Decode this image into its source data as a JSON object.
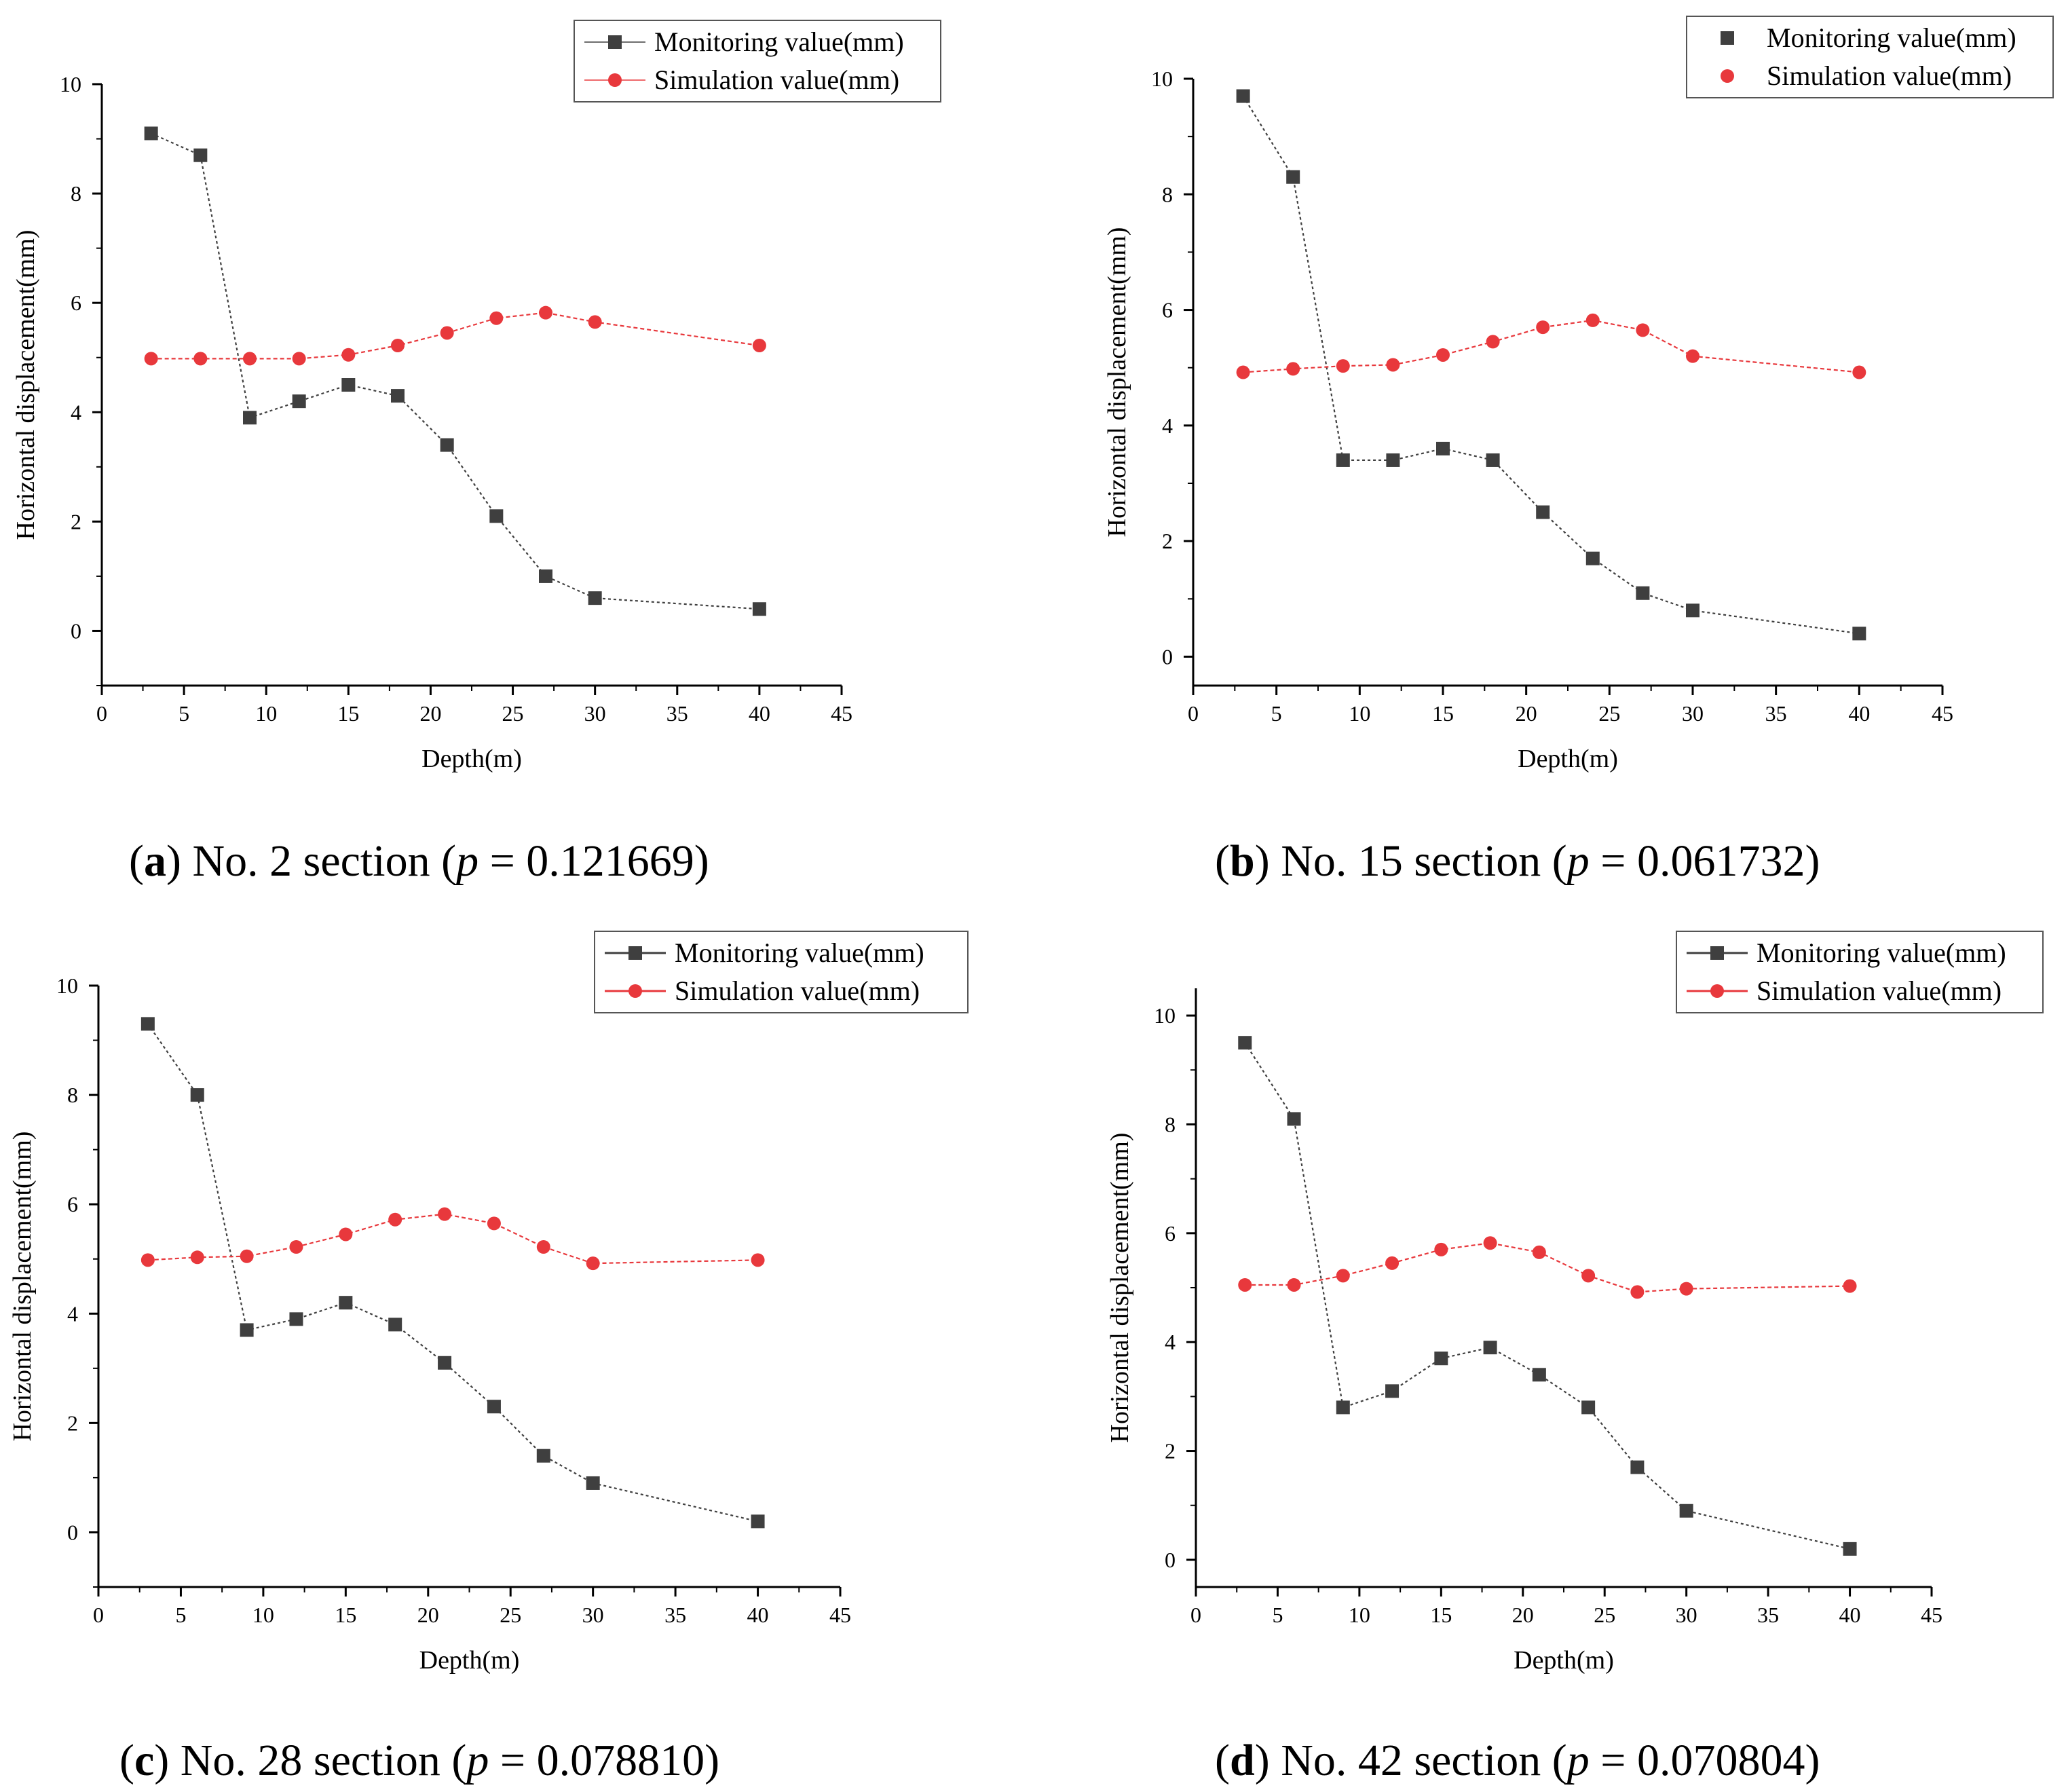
{
  "chart_data": [
    {
      "type": "line",
      "panel_letter": "a",
      "caption_text": "No. 2 section (",
      "caption_p": "p",
      "caption_value": " = 0.121669)",
      "xlabel": "Depth(m)",
      "ylabel": "Horizontal displacement(mm)",
      "xlim": [
        0,
        45
      ],
      "ylim": [
        -1,
        10
      ],
      "xticks": [
        0,
        5,
        10,
        15,
        20,
        25,
        30,
        35,
        40,
        45
      ],
      "yticks": [
        0,
        2,
        4,
        6,
        8,
        10
      ],
      "legend_position": "top-right",
      "x": [
        3,
        6,
        9,
        12,
        15,
        18,
        21,
        24,
        27,
        30,
        40
      ],
      "series": [
        {
          "name": "Monitoring value(mm)",
          "color": "#3f3f3f",
          "marker": "square",
          "values": [
            9.1,
            8.7,
            3.9,
            4.2,
            4.5,
            4.3,
            3.4,
            2.1,
            1.0,
            0.6,
            0.4
          ]
        },
        {
          "name": "Simulation value(mm)",
          "color": "#e8383c",
          "marker": "circle",
          "values": [
            4.98,
            4.98,
            4.98,
            4.98,
            5.05,
            5.22,
            5.45,
            5.72,
            5.82,
            5.65,
            5.22
          ]
        }
      ]
    },
    {
      "type": "line",
      "panel_letter": "b",
      "caption_text": "No. 15 section (",
      "caption_p": "p",
      "caption_value": " = 0.061732)",
      "xlabel": "Depth(m)",
      "ylabel": "Horizontal displacement(mm)",
      "xlim": [
        0,
        45
      ],
      "ylim": [
        -0.5,
        10
      ],
      "xticks": [
        0,
        5,
        10,
        15,
        20,
        25,
        30,
        35,
        40,
        45
      ],
      "yticks": [
        0,
        2,
        4,
        6,
        8,
        10
      ],
      "legend_position": "top-right",
      "x": [
        3,
        6,
        9,
        12,
        15,
        18,
        21,
        24,
        27,
        30,
        40
      ],
      "series": [
        {
          "name": "Monitoring value(mm)",
          "color": "#3f3f3f",
          "marker": "square",
          "values": [
            9.7,
            8.3,
            3.4,
            3.4,
            3.6,
            3.4,
            2.5,
            1.7,
            1.1,
            0.8,
            0.4
          ]
        },
        {
          "name": "Simulation value(mm)",
          "color": "#e8383c",
          "marker": "circle",
          "values": [
            4.92,
            4.98,
            5.03,
            5.05,
            5.22,
            5.45,
            5.7,
            5.82,
            5.65,
            5.2,
            4.92
          ]
        }
      ]
    },
    {
      "type": "line",
      "panel_letter": "c",
      "caption_text": "No. 28 section (",
      "caption_p": "p",
      "caption_value": " = 0.078810)",
      "xlabel": "Depth(m)",
      "ylabel": "Horizontal displacement(mm)",
      "xlim": [
        0,
        45
      ],
      "ylim": [
        -1,
        10
      ],
      "xticks": [
        0,
        5,
        10,
        15,
        20,
        25,
        30,
        35,
        40,
        45
      ],
      "yticks": [
        0,
        2,
        4,
        6,
        8,
        10
      ],
      "legend_position": "top-right",
      "x": [
        3,
        6,
        9,
        12,
        15,
        18,
        21,
        24,
        27,
        30,
        40
      ],
      "series": [
        {
          "name": "Monitoring value(mm)",
          "color": "#3f3f3f",
          "marker": "square",
          "values": [
            9.3,
            8.0,
            3.7,
            3.9,
            4.2,
            3.8,
            3.1,
            2.3,
            1.4,
            0.9,
            0.2
          ]
        },
        {
          "name": "Simulation value(mm)",
          "color": "#e8383c",
          "marker": "circle",
          "values": [
            4.98,
            5.03,
            5.05,
            5.22,
            5.45,
            5.72,
            5.82,
            5.65,
            5.22,
            4.92,
            4.98
          ]
        }
      ]
    },
    {
      "type": "line",
      "panel_letter": "d",
      "caption_text": "No. 42 section (",
      "caption_p": "p",
      "caption_value": " = 0.070804)",
      "xlabel": "Depth(m)",
      "ylabel": "Horizontal displacement(mm)",
      "xlim": [
        0,
        45
      ],
      "ylim": [
        -0.5,
        10.5
      ],
      "xticks": [
        0,
        5,
        10,
        15,
        20,
        25,
        30,
        35,
        40,
        45
      ],
      "yticks": [
        0,
        2,
        4,
        6,
        8,
        10
      ],
      "legend_position": "top-right",
      "x": [
        3,
        6,
        9,
        12,
        15,
        18,
        21,
        24,
        27,
        30,
        40
      ],
      "series": [
        {
          "name": "Monitoring value(mm)",
          "color": "#3f3f3f",
          "marker": "square",
          "values": [
            9.5,
            8.1,
            2.8,
            3.1,
            3.7,
            3.9,
            3.4,
            2.8,
            1.7,
            0.9,
            0.2
          ]
        },
        {
          "name": "Simulation value(mm)",
          "color": "#e8383c",
          "marker": "circle",
          "values": [
            5.05,
            5.05,
            5.22,
            5.45,
            5.7,
            5.82,
            5.65,
            5.22,
            4.92,
            4.98,
            5.03
          ]
        }
      ]
    }
  ]
}
